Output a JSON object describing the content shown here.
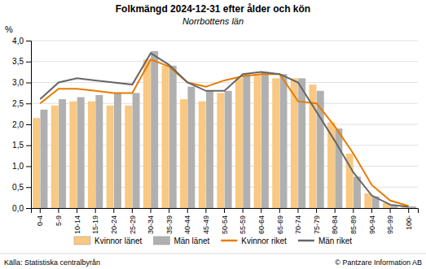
{
  "chart_data": {
    "type": "bar",
    "title": "Folkmängd 2024-12-31 efter ålder och kön",
    "subtitle": "Norrbottens län",
    "ylabel": "%",
    "categories": [
      "0-4",
      "5-9",
      "10-14",
      "15-19",
      "20-24",
      "25-29",
      "30-34",
      "35-39",
      "40-44",
      "45-49",
      "50-54",
      "55-59",
      "60-64",
      "65-69",
      "70-74",
      "75-79",
      "80-84",
      "85-89",
      "90-94",
      "95-99",
      "100-"
    ],
    "series": [
      {
        "name": "Kvinnor länet",
        "type": "bar",
        "color": "#f9c882",
        "values": [
          2.15,
          2.45,
          2.55,
          2.55,
          2.45,
          2.45,
          3.55,
          3.4,
          2.6,
          2.55,
          2.75,
          3.1,
          3.2,
          3.1,
          3.1,
          2.95,
          2.05,
          1.3,
          0.35,
          0.12,
          0.04
        ]
      },
      {
        "name": "Män länet",
        "type": "bar",
        "color": "#b0b0b0",
        "values": [
          2.35,
          2.6,
          2.65,
          2.7,
          2.75,
          2.75,
          3.75,
          3.4,
          2.9,
          2.8,
          2.8,
          3.2,
          3.25,
          3.2,
          3.1,
          2.8,
          1.9,
          0.75,
          0.28,
          0.08,
          0.04
        ]
      },
      {
        "name": "Kvinnor riket",
        "type": "line",
        "color": "#e87a00",
        "values": [
          2.5,
          2.85,
          2.85,
          2.8,
          2.75,
          2.75,
          3.55,
          3.38,
          3.0,
          2.9,
          3.05,
          3.15,
          3.2,
          3.2,
          2.55,
          2.5,
          1.95,
          1.3,
          0.55,
          0.18,
          0.05
        ]
      },
      {
        "name": "Män riket",
        "type": "line",
        "color": "#666666",
        "values": [
          2.6,
          3.0,
          3.1,
          3.05,
          3.0,
          2.95,
          3.7,
          3.42,
          3.0,
          2.8,
          2.8,
          3.2,
          3.25,
          3.2,
          3.0,
          2.3,
          1.6,
          0.85,
          0.3,
          0.08,
          0.03
        ]
      }
    ],
    "ylim": [
      0.0,
      4.0
    ],
    "yticks": [
      {
        "value": 0.0,
        "label": "0,0"
      },
      {
        "value": 0.5,
        "label": "0,5"
      },
      {
        "value": 1.0,
        "label": "1,0"
      },
      {
        "value": 1.5,
        "label": "1,5"
      },
      {
        "value": 2.0,
        "label": "2,0"
      },
      {
        "value": 2.5,
        "label": "2,5"
      },
      {
        "value": 3.0,
        "label": "3,0"
      },
      {
        "value": 3.5,
        "label": "3,5"
      },
      {
        "value": 4.0,
        "label": "4,0"
      }
    ],
    "grid": true,
    "legend": "bottom",
    "annotations": [
      "Källa: Statistiska centralbyrån",
      "© Pantzare Information AB"
    ]
  }
}
